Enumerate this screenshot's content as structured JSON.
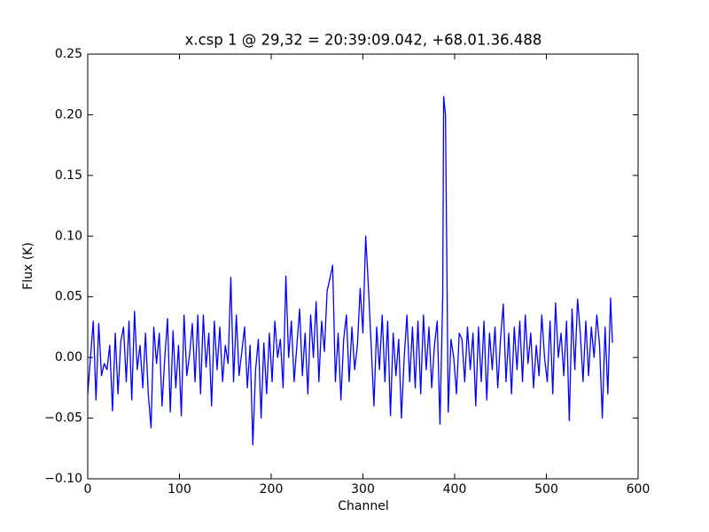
{
  "chart_data": {
    "type": "line",
    "title": "x.csp 1 @ 29,32 = 20:39:09.042, +68.01.36.488",
    "x_label": "Channel",
    "y_label": "Flux (K)",
    "xlim": [
      0,
      600
    ],
    "ylim": [
      -0.1,
      0.25
    ],
    "xticks": [
      0,
      100,
      200,
      300,
      400,
      500,
      600
    ],
    "yticks": [
      {
        "value": -0.1,
        "label": "−0.10"
      },
      {
        "value": -0.05,
        "label": "−0.05"
      },
      {
        "value": 0,
        "label": "0.00"
      },
      {
        "value": 0.05,
        "label": "0.05"
      },
      {
        "value": 0.1,
        "label": "0.10"
      },
      0.15,
      {
        "value": 0.2,
        "label": "0.20"
      },
      0.25
    ],
    "grid": false,
    "series": [
      {
        "color": "#0000ff",
        "x": [
          0,
          3,
          6,
          9,
          12,
          15,
          18,
          21,
          24,
          27,
          30,
          33,
          36,
          39,
          42,
          45,
          48,
          51,
          54,
          57,
          60,
          63,
          66,
          69,
          72,
          75,
          78,
          81,
          84,
          87,
          90,
          93,
          96,
          99,
          102,
          105,
          108,
          111,
          114,
          117,
          120,
          123,
          126,
          129,
          132,
          135,
          138,
          141,
          144,
          147,
          150,
          153,
          156,
          159,
          162,
          165,
          168,
          171,
          174,
          177,
          180,
          183,
          186,
          189,
          192,
          195,
          198,
          201,
          204,
          207,
          210,
          213,
          216,
          219,
          222,
          225,
          228,
          231,
          234,
          237,
          240,
          243,
          246,
          249,
          252,
          255,
          258,
          261,
          264,
          267,
          270,
          273,
          276,
          279,
          282,
          285,
          288,
          291,
          294,
          297,
          300,
          303,
          306,
          309,
          312,
          315,
          318,
          321,
          324,
          327,
          330,
          333,
          336,
          339,
          342,
          345,
          348,
          351,
          354,
          357,
          360,
          363,
          366,
          369,
          372,
          375,
          378,
          381,
          384,
          387,
          388,
          390,
          393,
          396,
          399,
          402,
          405,
          408,
          411,
          414,
          417,
          420,
          423,
          426,
          429,
          432,
          435,
          438,
          441,
          444,
          447,
          450,
          453,
          456,
          459,
          462,
          465,
          468,
          471,
          474,
          477,
          480,
          483,
          486,
          489,
          492,
          495,
          498,
          501,
          504,
          507,
          510,
          513,
          516,
          519,
          522,
          525,
          528,
          531,
          534,
          537,
          540,
          543,
          546,
          549,
          552,
          555,
          558,
          561,
          564,
          567,
          570,
          572
        ],
        "values": [
          -0.03,
          0.0,
          0.03,
          -0.035,
          0.028,
          -0.015,
          -0.005,
          -0.01,
          0.01,
          -0.044,
          0.02,
          -0.03,
          0.013,
          0.025,
          -0.02,
          0.03,
          -0.035,
          0.038,
          -0.01,
          0.01,
          -0.025,
          0.02,
          -0.03,
          -0.058,
          0.025,
          -0.005,
          0.02,
          -0.04,
          0.0,
          0.032,
          -0.045,
          0.022,
          -0.025,
          0.01,
          -0.048,
          0.035,
          -0.015,
          0.002,
          0.028,
          -0.02,
          0.035,
          -0.03,
          0.035,
          -0.008,
          0.02,
          -0.04,
          0.03,
          -0.01,
          0.025,
          -0.02,
          0.01,
          -0.005,
          0.066,
          -0.02,
          0.035,
          -0.015,
          0.005,
          0.025,
          -0.025,
          0.01,
          -0.072,
          -0.01,
          0.015,
          -0.05,
          0.012,
          -0.03,
          0.02,
          -0.02,
          0.03,
          0.0,
          0.015,
          -0.025,
          0.067,
          0.0,
          0.03,
          -0.02,
          0.01,
          0.04,
          -0.015,
          0.02,
          -0.03,
          0.035,
          0.0,
          0.046,
          -0.02,
          0.03,
          0.005,
          0.055,
          0.065,
          0.076,
          -0.02,
          0.02,
          -0.035,
          0.015,
          0.035,
          -0.02,
          0.025,
          -0.01,
          0.01,
          0.057,
          0.02,
          0.1,
          0.058,
          0.01,
          -0.04,
          0.025,
          -0.01,
          0.035,
          -0.02,
          0.03,
          -0.048,
          0.02,
          -0.015,
          0.015,
          -0.05,
          0.0,
          0.035,
          -0.02,
          0.025,
          -0.025,
          0.03,
          -0.03,
          0.035,
          -0.01,
          0.025,
          -0.025,
          0.01,
          0.03,
          -0.055,
          0.05,
          0.215,
          0.2,
          -0.045,
          0.015,
          0.0,
          -0.03,
          0.02,
          0.015,
          -0.02,
          0.025,
          -0.01,
          0.02,
          -0.04,
          0.025,
          -0.02,
          0.03,
          -0.035,
          0.02,
          -0.01,
          0.025,
          -0.025,
          0.015,
          0.044,
          -0.02,
          0.02,
          -0.03,
          0.025,
          -0.01,
          0.03,
          -0.02,
          0.035,
          -0.005,
          0.02,
          -0.025,
          0.01,
          -0.015,
          0.035,
          0.0,
          -0.02,
          0.03,
          -0.03,
          0.045,
          0.0,
          0.02,
          -0.015,
          0.03,
          -0.052,
          0.04,
          -0.01,
          0.048,
          0.02,
          -0.02,
          0.03,
          -0.015,
          0.025,
          0.0,
          0.035,
          0.01,
          -0.05,
          0.025,
          -0.03,
          0.049,
          0.012
        ]
      }
    ]
  }
}
